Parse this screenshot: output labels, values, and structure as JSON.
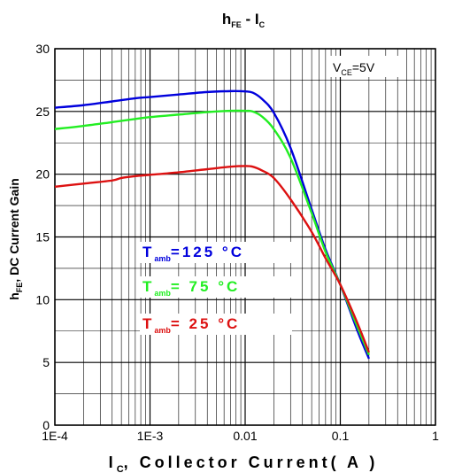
{
  "chart_data": {
    "type": "line",
    "title_main": "h",
    "title_sub1": "FE",
    "title_mid": " - I",
    "title_sub2": "C",
    "xlabel_main": "I",
    "xlabel_sub": "C",
    "xlabel_rest": ", Collector Current( A )",
    "ylabel_main": "h",
    "ylabel_sub": "FE",
    "ylabel_rest": ", DC Current Gain",
    "annotation_main": "V",
    "annotation_sub": "CE",
    "annotation_rest": "=5V",
    "x_scale": "log",
    "xlim": [
      0.0001,
      1
    ],
    "ylim": [
      0,
      30
    ],
    "x_ticks": [
      {
        "value": 0.0001,
        "label": "1E-4"
      },
      {
        "value": 0.001,
        "label": "1E-3"
      },
      {
        "value": 0.01,
        "label": "0.01"
      },
      {
        "value": 0.1,
        "label": "0.1"
      },
      {
        "value": 1,
        "label": "1"
      }
    ],
    "y_ticks": [
      {
        "value": 0,
        "label": "0"
      },
      {
        "value": 5,
        "label": "5"
      },
      {
        "value": 10,
        "label": "10"
      },
      {
        "value": 15,
        "label": "15"
      },
      {
        "value": 20,
        "label": "20"
      },
      {
        "value": 25,
        "label": "25"
      },
      {
        "value": 30,
        "label": "30"
      }
    ],
    "grid": true,
    "series": [
      {
        "name_main": "T",
        "name_sub": "amb",
        "name_rest": "=125 °C",
        "color": "#0000dd",
        "x": [
          0.0001,
          0.0002,
          0.0004,
          0.0007,
          0.001,
          0.002,
          0.004,
          0.007,
          0.01,
          0.012,
          0.015,
          0.02,
          0.03,
          0.05,
          0.07,
          0.1,
          0.15,
          0.2
        ],
        "y": [
          25.3,
          25.5,
          25.8,
          26.05,
          26.15,
          26.35,
          26.55,
          26.62,
          26.6,
          26.5,
          26.0,
          24.9,
          22.1,
          17.2,
          14.0,
          11.2,
          7.6,
          5.3
        ]
      },
      {
        "name_main": "T",
        "name_sub": "amb",
        "name_rest": "= 75 °C",
        "color": "#22ee22",
        "x": [
          0.0001,
          0.0002,
          0.0004,
          0.0007,
          0.001,
          0.002,
          0.004,
          0.007,
          0.01,
          0.012,
          0.015,
          0.02,
          0.03,
          0.05,
          0.07,
          0.1,
          0.15,
          0.2
        ],
        "y": [
          23.6,
          23.85,
          24.15,
          24.4,
          24.55,
          24.75,
          24.95,
          25.05,
          25.05,
          25.0,
          24.6,
          23.6,
          21.3,
          16.9,
          13.8,
          11.2,
          7.9,
          5.6
        ]
      },
      {
        "name_main": "T",
        "name_sub": "amb",
        "name_rest": "= 25 °C",
        "color": "#dd1111",
        "x": [
          0.0001,
          0.0002,
          0.0004,
          0.0005,
          0.0007,
          0.001,
          0.002,
          0.004,
          0.007,
          0.01,
          0.012,
          0.015,
          0.02,
          0.03,
          0.05,
          0.07,
          0.1,
          0.15,
          0.2
        ],
        "y": [
          19.0,
          19.25,
          19.5,
          19.7,
          19.85,
          19.95,
          20.15,
          20.4,
          20.6,
          20.65,
          20.6,
          20.3,
          19.7,
          18.0,
          15.4,
          13.3,
          11.2,
          8.2,
          5.8
        ]
      }
    ]
  }
}
